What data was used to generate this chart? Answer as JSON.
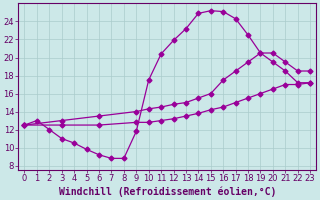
{
  "xlabel": "Windchill (Refroidissement éolien,°C)",
  "background_color": "#cce8e8",
  "line_color": "#990099",
  "grid_color": "#aacccc",
  "axis_color": "#660066",
  "xlim": [
    -0.5,
    23.5
  ],
  "ylim": [
    7.5,
    26.0
  ],
  "xticks": [
    0,
    1,
    2,
    3,
    4,
    5,
    6,
    7,
    8,
    9,
    10,
    11,
    12,
    13,
    14,
    15,
    16,
    17,
    18,
    19,
    20,
    21,
    22,
    23
  ],
  "yticks": [
    8,
    10,
    12,
    14,
    16,
    18,
    20,
    22,
    24
  ],
  "curve1_x": [
    0,
    1,
    2,
    3,
    4,
    5,
    6,
    7,
    8,
    9,
    10,
    11,
    12,
    13,
    14,
    15,
    16,
    17,
    18,
    19,
    20,
    21,
    22,
    23
  ],
  "curve1_y": [
    12.5,
    13.0,
    12.0,
    11.0,
    10.5,
    9.8,
    9.2,
    8.8,
    8.8,
    11.8,
    17.5,
    20.4,
    21.9,
    23.2,
    24.9,
    25.2,
    25.1,
    24.3,
    22.5,
    20.5,
    19.5,
    18.5,
    17.2,
    17.2
  ],
  "curve2_x": [
    0,
    3,
    6,
    9,
    10,
    11,
    12,
    13,
    14,
    15,
    16,
    17,
    18,
    19,
    20,
    21,
    22,
    23
  ],
  "curve2_y": [
    12.5,
    13.0,
    13.5,
    14.0,
    14.3,
    14.5,
    14.8,
    15.0,
    15.5,
    16.0,
    17.5,
    18.5,
    19.5,
    20.5,
    20.5,
    19.5,
    18.5,
    18.5
  ],
  "curve3_x": [
    0,
    3,
    6,
    9,
    10,
    11,
    12,
    13,
    14,
    15,
    16,
    17,
    18,
    19,
    20,
    21,
    22,
    23
  ],
  "curve3_y": [
    12.5,
    12.5,
    12.5,
    12.8,
    12.8,
    13.0,
    13.2,
    13.5,
    13.8,
    14.2,
    14.5,
    15.0,
    15.5,
    16.0,
    16.5,
    17.0,
    17.0,
    17.2
  ],
  "tick_fontsize": 6,
  "label_fontsize": 7
}
